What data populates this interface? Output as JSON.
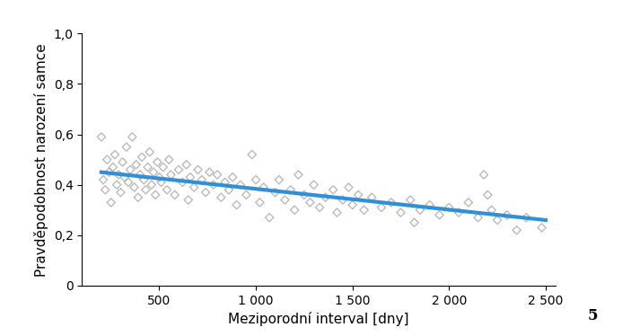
{
  "chart_data": {
    "type": "scatter",
    "x_label": "Meziporodní interval [dny]",
    "y_label": "Pravděpodobnost narození samce",
    "annotation": "5",
    "xlim": [
      100,
      2550
    ],
    "xticks": [
      500,
      {
        "value": 1000,
        "label": "1 000"
      },
      {
        "value": 1500,
        "label": "1 500"
      },
      {
        "value": 2000,
        "label": "2 000"
      },
      {
        "value": 2500,
        "label": "2 500"
      }
    ],
    "ylim": [
      0,
      1.0
    ],
    "yticks": [
      0,
      {
        "value": 0.2,
        "label": "0,2"
      },
      {
        "value": 0.4,
        "label": "0,4"
      },
      {
        "value": 0.6,
        "label": "0,6"
      },
      {
        "value": 0.8,
        "label": "0,8"
      },
      {
        "value": 1.0,
        "label": "1,0"
      }
    ],
    "grid": false,
    "series": [
      {
        "type": "scatter",
        "color": "#b4b4b4",
        "marker": "diamond",
        "x": [
          200,
          210,
          220,
          230,
          240,
          250,
          260,
          270,
          280,
          290,
          300,
          310,
          320,
          330,
          340,
          350,
          360,
          370,
          380,
          390,
          400,
          410,
          420,
          430,
          440,
          450,
          460,
          470,
          480,
          490,
          500,
          510,
          520,
          540,
          550,
          560,
          580,
          600,
          620,
          640,
          650,
          660,
          680,
          700,
          720,
          740,
          760,
          780,
          800,
          820,
          840,
          860,
          880,
          900,
          920,
          950,
          980,
          1000,
          1020,
          1040,
          1070,
          1100,
          1120,
          1150,
          1180,
          1200,
          1220,
          1250,
          1280,
          1300,
          1330,
          1360,
          1400,
          1420,
          1450,
          1480,
          1500,
          1530,
          1560,
          1600,
          1650,
          1700,
          1750,
          1800,
          1820,
          1850,
          1900,
          1950,
          2000,
          2050,
          2100,
          2150,
          2180,
          2200,
          2220,
          2250,
          2300,
          2350,
          2400,
          2480
        ],
        "values": [
          0.59,
          0.42,
          0.38,
          0.5,
          0.45,
          0.33,
          0.47,
          0.52,
          0.4,
          0.44,
          0.37,
          0.49,
          0.43,
          0.55,
          0.41,
          0.46,
          0.59,
          0.39,
          0.48,
          0.35,
          0.44,
          0.51,
          0.42,
          0.38,
          0.47,
          0.53,
          0.4,
          0.45,
          0.36,
          0.49,
          0.43,
          0.41,
          0.47,
          0.38,
          0.5,
          0.44,
          0.36,
          0.46,
          0.41,
          0.48,
          0.34,
          0.43,
          0.39,
          0.46,
          0.42,
          0.37,
          0.45,
          0.4,
          0.44,
          0.35,
          0.41,
          0.38,
          0.43,
          0.32,
          0.4,
          0.36,
          0.52,
          0.42,
          0.33,
          0.39,
          0.27,
          0.37,
          0.42,
          0.34,
          0.38,
          0.3,
          0.44,
          0.36,
          0.33,
          0.4,
          0.31,
          0.35,
          0.38,
          0.29,
          0.34,
          0.39,
          0.32,
          0.36,
          0.3,
          0.35,
          0.31,
          0.33,
          0.29,
          0.34,
          0.25,
          0.3,
          0.32,
          0.28,
          0.31,
          0.29,
          0.33,
          0.27,
          0.44,
          0.36,
          0.3,
          0.26,
          0.28,
          0.22,
          0.27,
          0.23
        ]
      },
      {
        "type": "line",
        "color": "#2f8fd8",
        "line_style": "solid",
        "x": [
          200,
          2500
        ],
        "values": [
          0.45,
          0.26
        ]
      }
    ]
  }
}
